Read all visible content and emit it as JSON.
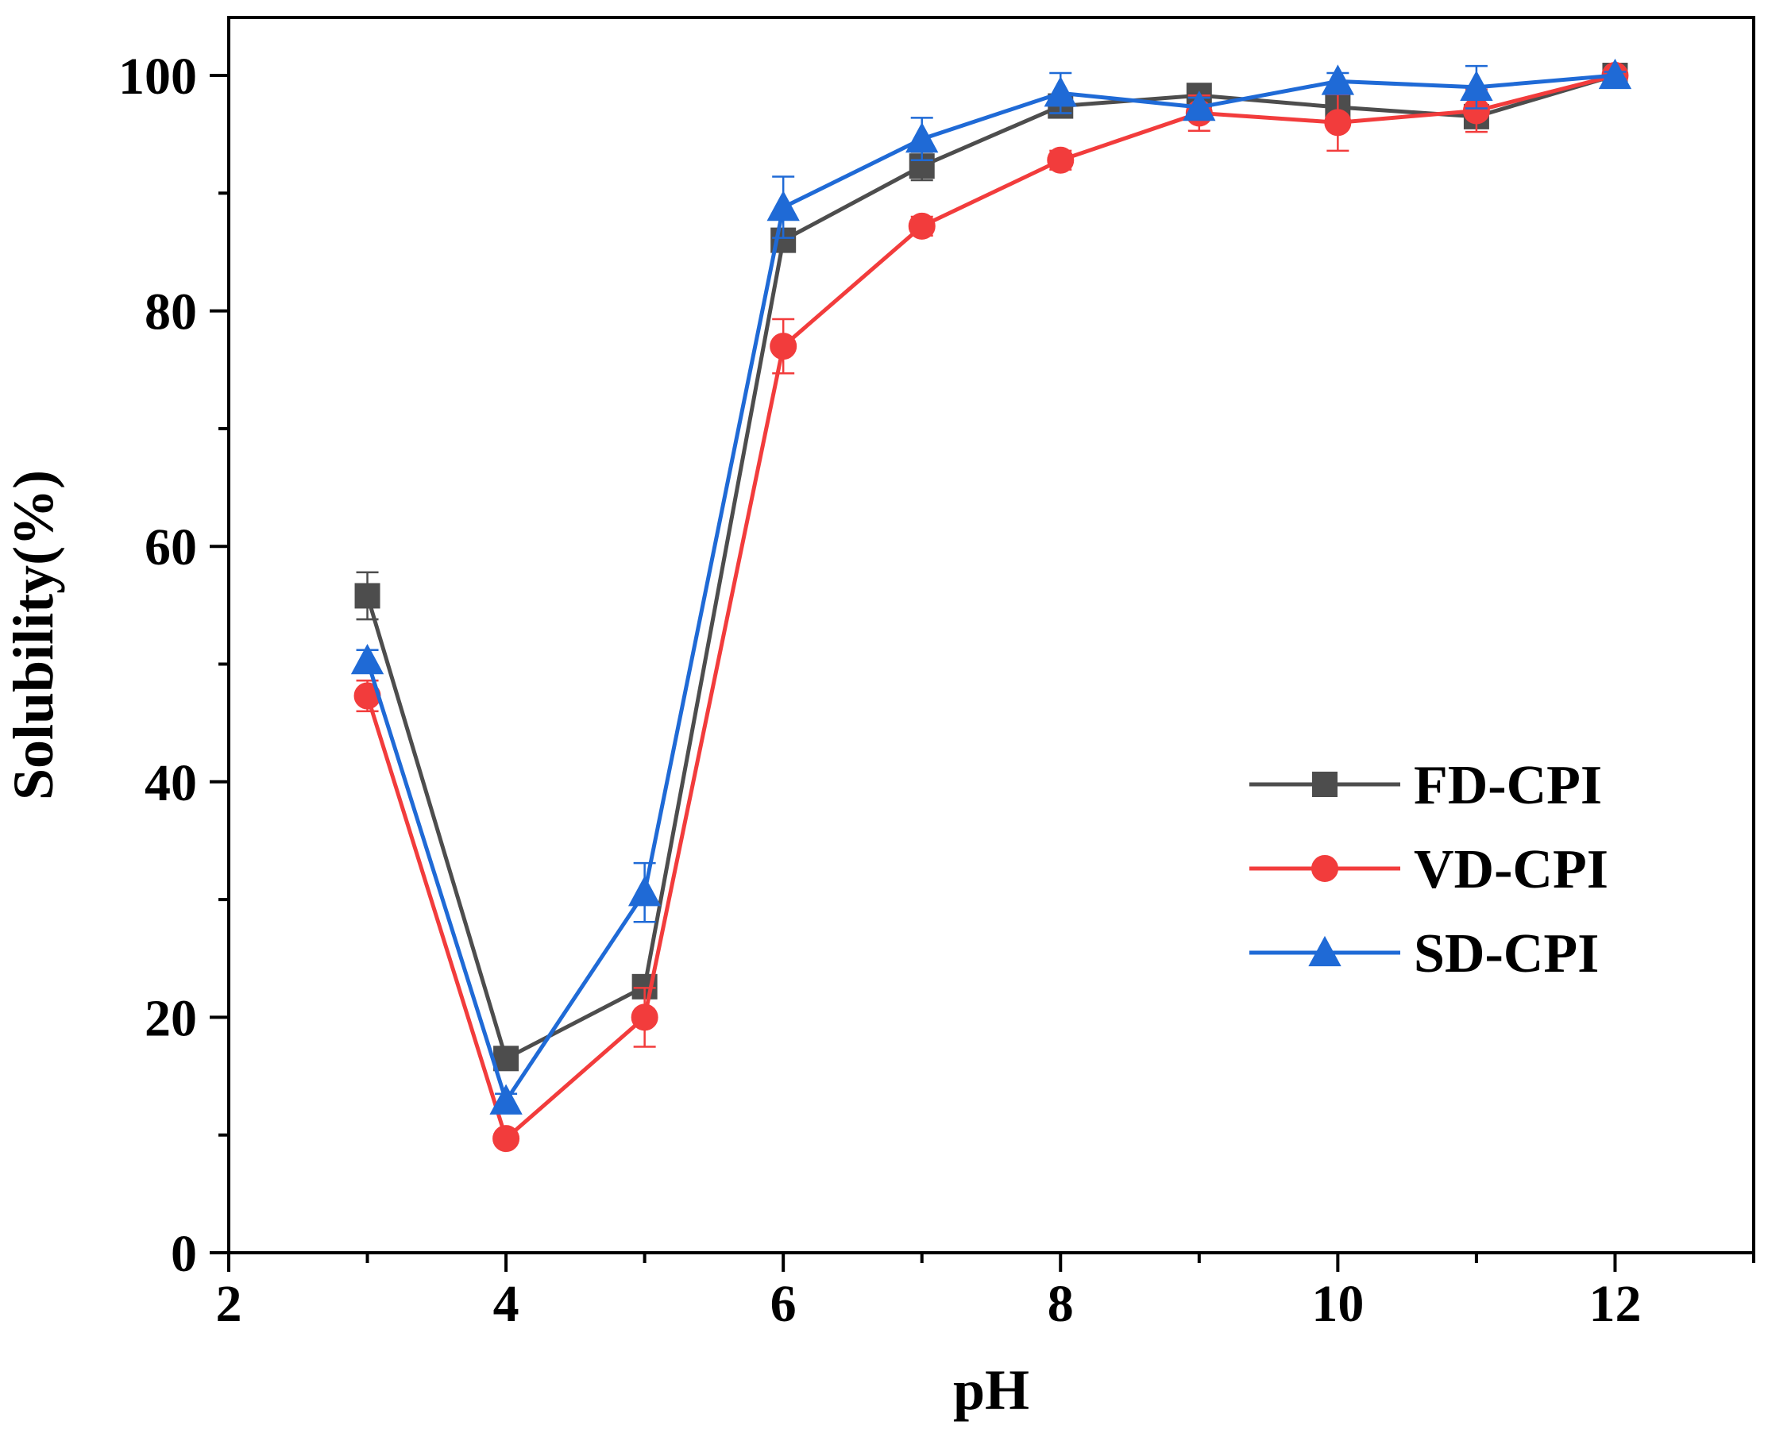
{
  "chart_data": {
    "type": "line",
    "title": "",
    "xlabel": "pH",
    "ylabel": "Solubility(%)",
    "xlim": [
      2,
      13
    ],
    "ylim": [
      0,
      100
    ],
    "x_ticks": [
      2,
      4,
      6,
      8,
      10,
      12
    ],
    "y_ticks": [
      0,
      20,
      40,
      60,
      80,
      100
    ],
    "legend_position": "right",
    "x": [
      3,
      4,
      5,
      6,
      7,
      8,
      9,
      10,
      11,
      12
    ],
    "series": [
      {
        "name": "FD-CPI",
        "color": "#4d4d4d",
        "marker": "square",
        "values": [
          55.8,
          16.5,
          22.6,
          86.0,
          92.3,
          97.4,
          98.3,
          97.3,
          96.5,
          100.0
        ],
        "errors": [
          2.0,
          0.8,
          0.9,
          0.9,
          1.2,
          0.9,
          0.6,
          0.8,
          0.6,
          0.3
        ]
      },
      {
        "name": "VD-CPI",
        "color": "#f23c3c",
        "marker": "circle",
        "values": [
          47.3,
          9.7,
          20.0,
          77.0,
          87.2,
          92.8,
          96.8,
          96.0,
          97.0,
          100.0
        ],
        "errors": [
          1.3,
          0.6,
          2.5,
          2.3,
          0.8,
          0.8,
          1.5,
          2.4,
          1.8,
          0.3
        ]
      },
      {
        "name": "SD-CPI",
        "color": "#1f6ad6",
        "marker": "triangle",
        "values": [
          50.3,
          12.9,
          30.6,
          88.8,
          94.6,
          98.5,
          97.3,
          99.5,
          99.0,
          100.0
        ],
        "errors": [
          0.9,
          0.6,
          2.5,
          2.6,
          1.8,
          1.7,
          0.8,
          0.7,
          1.8,
          0.3
        ]
      }
    ]
  }
}
